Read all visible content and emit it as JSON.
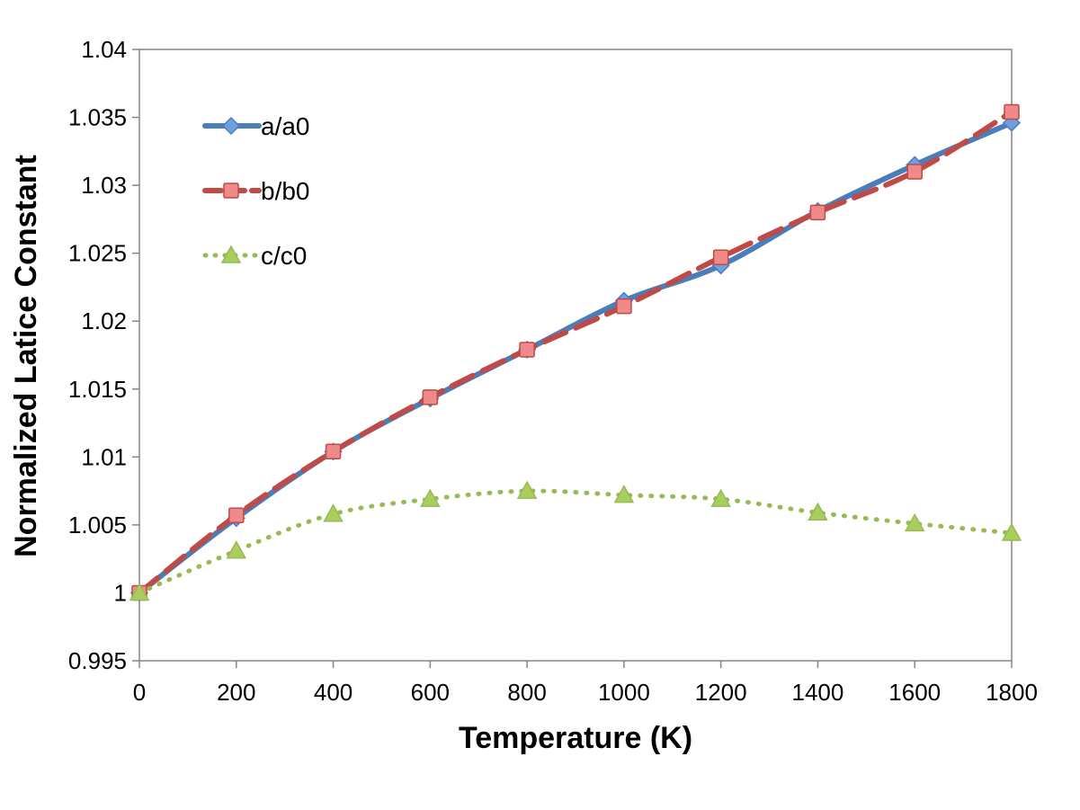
{
  "chart_data": {
    "type": "line",
    "title": "",
    "xlabel": "Temperature (K)",
    "ylabel": "Normalized Latice Constant",
    "xlim": [
      0,
      1800
    ],
    "ylim": [
      0.995,
      1.04
    ],
    "x_ticks": [
      "0",
      "200",
      "400",
      "600",
      "800",
      "1000",
      "1200",
      "1400",
      "1600",
      "1800"
    ],
    "y_ticks": [
      "0.995",
      "1",
      "1.005",
      "1.01",
      "1.015",
      "1.02",
      "1.025",
      "1.03",
      "1.035",
      "1.04"
    ],
    "grid": false,
    "legend_position": "top-left",
    "x": [
      0,
      200,
      400,
      600,
      800,
      1000,
      1200,
      1400,
      1600,
      1800
    ],
    "series": [
      {
        "name": "a/a0",
        "color": "#4A7EBB",
        "line_style": "solid",
        "marker": "diamond",
        "marker_color": "#6F9FE0",
        "values": [
          1.0,
          1.0055,
          1.0104,
          1.0143,
          1.0179,
          1.0215,
          1.0241,
          1.0281,
          1.0315,
          1.0346
        ]
      },
      {
        "name": "b/b0",
        "color": "#BE4B48",
        "line_style": "dashed",
        "marker": "square",
        "marker_color": "#F08A88",
        "values": [
          1.0,
          1.0057,
          1.0104,
          1.0144,
          1.0179,
          1.0211,
          1.0247,
          1.028,
          1.031,
          1.0354
        ]
      },
      {
        "name": "c/c0",
        "color": "#98B954",
        "line_style": "dotted",
        "marker": "triangle",
        "marker_color": "#A8CF5E",
        "values": [
          1.0,
          1.0031,
          1.0058,
          1.0069,
          1.0075,
          1.0072,
          1.0069,
          1.0059,
          1.0051,
          1.0044
        ]
      }
    ]
  }
}
